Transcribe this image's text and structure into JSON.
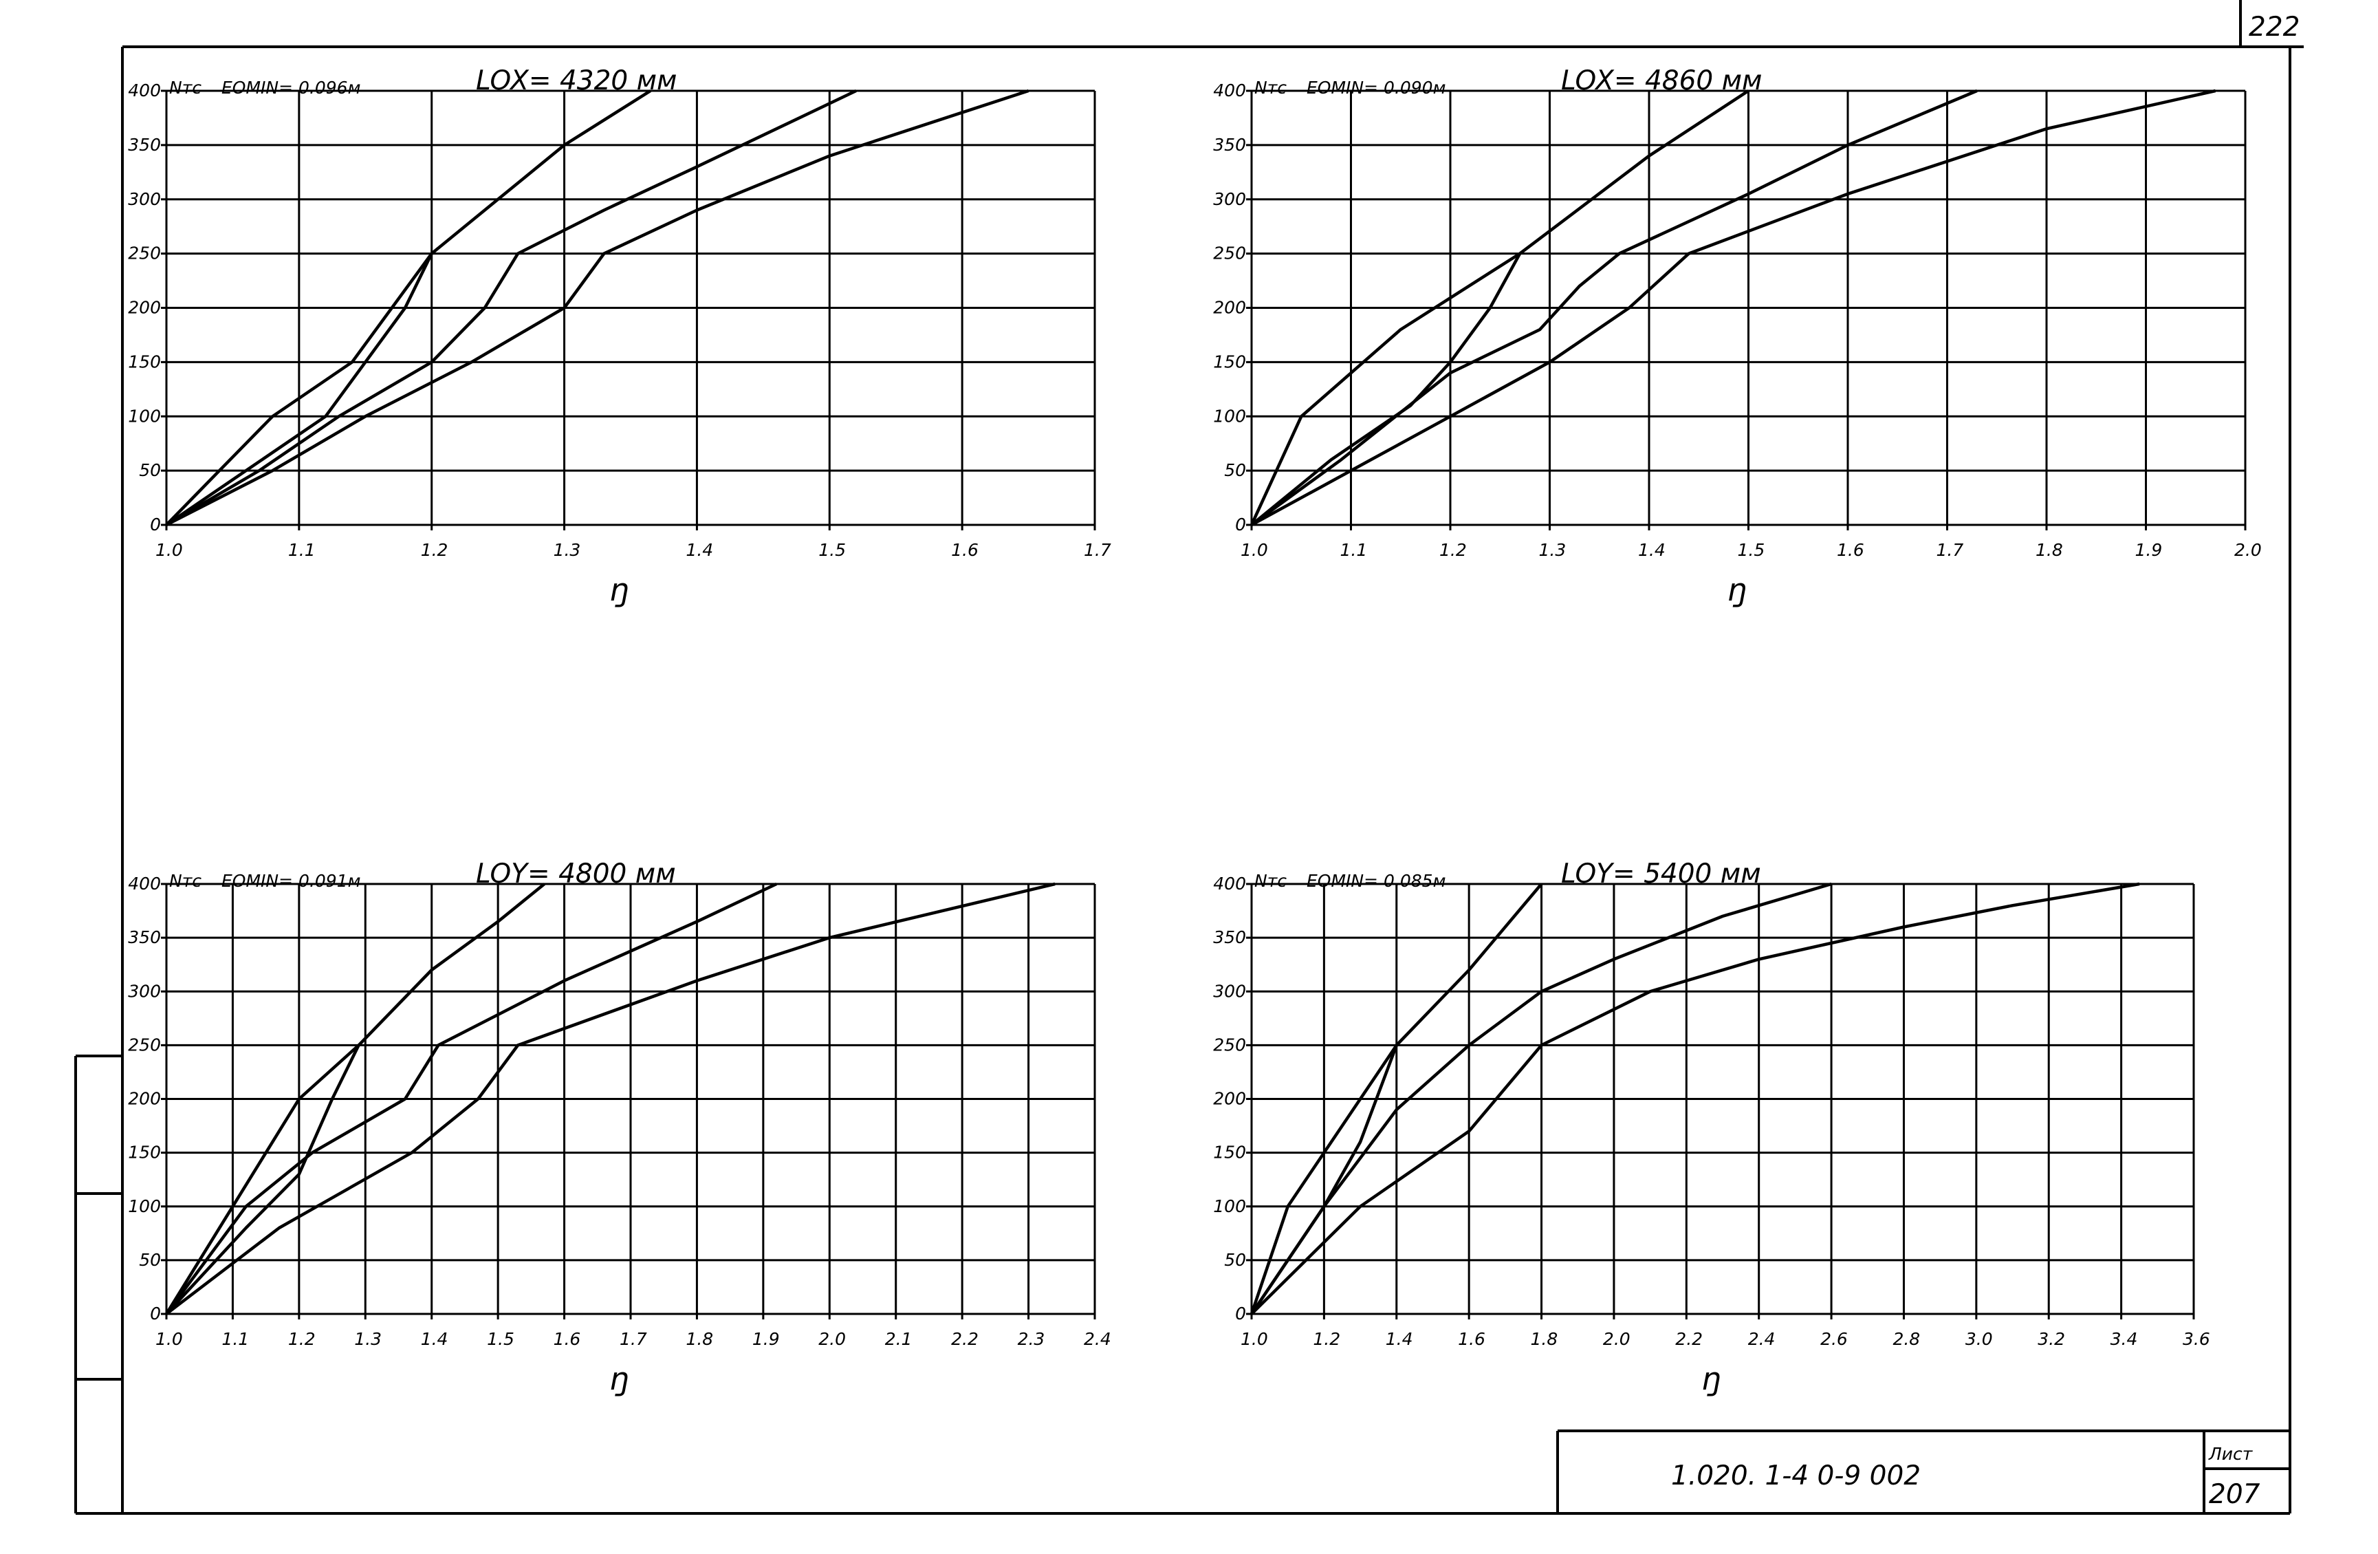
{
  "page_number": "222",
  "title_block": {
    "code": "1.020. 1-4  0-9  002",
    "sheet_label": "Лист",
    "sheet_number": "207"
  },
  "chart_data": [
    {
      "type": "line",
      "ylabel": "Nтс",
      "xlabel": "ŋ",
      "eomin": "EOMIN= 0.096м",
      "length": "LOX= 4320 мм",
      "xlim": [
        1.0,
        1.7
      ],
      "ylim": [
        0,
        400
      ],
      "x_ticks": [
        1.0,
        1.1,
        1.2,
        1.3,
        1.4,
        1.5,
        1.6,
        1.7
      ],
      "x_tick_labels": [
        "1.0",
        "1.1",
        "1.2",
        "1.3",
        "1.4",
        "1.5",
        "1.6",
        "1.7"
      ],
      "y_ticks": [
        0,
        50,
        100,
        150,
        200,
        250,
        300,
        350,
        400
      ],
      "y_tick_labels": [
        "0",
        "50",
        "100",
        "150",
        "200",
        "250",
        "300",
        "350",
        "400"
      ],
      "series": [
        {
          "points": [
            [
              1.0,
              0
            ],
            [
              1.04,
              50
            ],
            [
              1.08,
              100
            ],
            [
              1.14,
              150
            ],
            [
              1.2,
              250
            ],
            [
              1.25,
              300
            ],
            [
              1.3,
              350
            ],
            [
              1.365,
              400
            ]
          ]
        },
        {
          "points": [
            [
              1.0,
              0
            ],
            [
              1.06,
              50
            ],
            [
              1.12,
              100
            ],
            [
              1.15,
              150
            ],
            [
              1.18,
              200
            ],
            [
              1.2,
              250
            ]
          ]
        },
        {
          "points": [
            [
              1.0,
              0
            ],
            [
              1.07,
              50
            ],
            [
              1.13,
              100
            ],
            [
              1.2,
              150
            ],
            [
              1.24,
              200
            ],
            [
              1.265,
              250
            ],
            [
              1.33,
              290
            ],
            [
              1.4,
              330
            ],
            [
              1.52,
              400
            ]
          ]
        },
        {
          "points": [
            [
              1.0,
              0
            ],
            [
              1.08,
              50
            ],
            [
              1.15,
              100
            ],
            [
              1.23,
              150
            ],
            [
              1.3,
              200
            ],
            [
              1.33,
              250
            ],
            [
              1.4,
              290
            ],
            [
              1.5,
              340
            ],
            [
              1.65,
              400
            ]
          ]
        }
      ]
    },
    {
      "type": "line",
      "ylabel": "Nтс",
      "xlabel": "ŋ",
      "eomin": "EOMIN= 0.090м",
      "length": "LOX= 4860 мм",
      "xlim": [
        1.0,
        2.0
      ],
      "ylim": [
        0,
        400
      ],
      "x_ticks": [
        1.0,
        1.1,
        1.2,
        1.3,
        1.4,
        1.5,
        1.6,
        1.7,
        1.8,
        1.9,
        2.0
      ],
      "x_tick_labels": [
        "1.0",
        "1.1",
        "1.2",
        "1.3",
        "1.4",
        "1.5",
        "1.6",
        "1.7",
        "1.8",
        "1.9",
        "2.0"
      ],
      "y_ticks": [
        0,
        50,
        100,
        150,
        200,
        250,
        300,
        350,
        400
      ],
      "y_tick_labels": [
        "0",
        "50",
        "100",
        "150",
        "200",
        "250",
        "300",
        "350",
        "400"
      ],
      "series": [
        {
          "points": [
            [
              1.0,
              0
            ],
            [
              1.05,
              100
            ],
            [
              1.15,
              180
            ],
            [
              1.27,
              250
            ],
            [
              1.4,
              340
            ],
            [
              1.5,
              400
            ]
          ]
        },
        {
          "points": [
            [
              1.0,
              0
            ],
            [
              1.08,
              60
            ],
            [
              1.16,
              110
            ],
            [
              1.2,
              150
            ],
            [
              1.24,
              200
            ],
            [
              1.27,
              250
            ]
          ]
        },
        {
          "points": [
            [
              1.0,
              0
            ],
            [
              1.09,
              60
            ],
            [
              1.2,
              140
            ],
            [
              1.29,
              180
            ],
            [
              1.33,
              220
            ],
            [
              1.37,
              250
            ],
            [
              1.5,
              305
            ],
            [
              1.6,
              350
            ],
            [
              1.73,
              400
            ]
          ]
        },
        {
          "points": [
            [
              1.0,
              0
            ],
            [
              1.12,
              60
            ],
            [
              1.2,
              100
            ],
            [
              1.3,
              150
            ],
            [
              1.38,
              200
            ],
            [
              1.44,
              250
            ],
            [
              1.6,
              305
            ],
            [
              1.8,
              365
            ],
            [
              1.97,
              400
            ]
          ]
        }
      ]
    },
    {
      "type": "line",
      "ylabel": "Nтс",
      "xlabel": "ŋ",
      "eomin": "EOMIN= 0.091м",
      "length": "LOY= 4800 мм",
      "xlim": [
        1.0,
        2.4
      ],
      "ylim": [
        0,
        400
      ],
      "x_ticks": [
        1.0,
        1.1,
        1.2,
        1.3,
        1.4,
        1.5,
        1.6,
        1.7,
        1.8,
        1.9,
        2.0,
        2.1,
        2.2,
        2.3,
        2.4
      ],
      "x_tick_labels": [
        "1.0",
        "1.1",
        "1.2",
        "1.3",
        "1.4",
        "1.5",
        "1.6",
        "1.7",
        "1.8",
        "1.9",
        "2.0",
        "2.1",
        "2.2",
        "2.3",
        "2.4"
      ],
      "y_ticks": [
        0,
        50,
        100,
        150,
        200,
        250,
        300,
        350,
        400
      ],
      "y_tick_labels": [
        "0",
        "50",
        "100",
        "150",
        "200",
        "250",
        "300",
        "350",
        "400"
      ],
      "series": [
        {
          "points": [
            [
              1.0,
              0
            ],
            [
              1.1,
              100
            ],
            [
              1.2,
              200
            ],
            [
              1.29,
              250
            ],
            [
              1.4,
              320
            ],
            [
              1.5,
              365
            ],
            [
              1.57,
              400
            ]
          ]
        },
        {
          "points": [
            [
              1.0,
              0
            ],
            [
              1.12,
              80
            ],
            [
              1.2,
              130
            ],
            [
              1.25,
              200
            ],
            [
              1.29,
              250
            ]
          ]
        },
        {
          "points": [
            [
              1.0,
              0
            ],
            [
              1.12,
              100
            ],
            [
              1.22,
              150
            ],
            [
              1.36,
              200
            ],
            [
              1.41,
              250
            ],
            [
              1.6,
              310
            ],
            [
              1.8,
              365
            ],
            [
              1.92,
              400
            ]
          ]
        },
        {
          "points": [
            [
              1.0,
              0
            ],
            [
              1.17,
              80
            ],
            [
              1.37,
              150
            ],
            [
              1.47,
              200
            ],
            [
              1.53,
              250
            ],
            [
              1.8,
              310
            ],
            [
              2.0,
              350
            ],
            [
              2.34,
              400
            ]
          ]
        }
      ]
    },
    {
      "type": "line",
      "ylabel": "Nтс",
      "xlabel": "ŋ",
      "eomin": "EOMIN= 0.085м",
      "length": "LOY= 5400 мм",
      "xlim": [
        1.0,
        3.6
      ],
      "ylim": [
        0,
        400
      ],
      "x_ticks": [
        1.0,
        1.2,
        1.4,
        1.6,
        1.8,
        2.0,
        2.2,
        2.4,
        2.6,
        2.8,
        3.0,
        3.2,
        3.4,
        3.6
      ],
      "x_tick_labels": [
        "1.0",
        "1.2",
        "1.4",
        "1.6",
        "1.8",
        "2.0",
        "2.2",
        "2.4",
        "2.6",
        "2.8",
        "3.0",
        "3.2",
        "3.4",
        "3.6"
      ],
      "y_ticks": [
        0,
        50,
        100,
        150,
        200,
        250,
        300,
        350,
        400
      ],
      "y_tick_labels": [
        "0",
        "50",
        "100",
        "150",
        "200",
        "250",
        "300",
        "350",
        "400"
      ],
      "series": [
        {
          "points": [
            [
              1.0,
              0
            ],
            [
              1.1,
              100
            ],
            [
              1.2,
              150
            ],
            [
              1.3,
              200
            ],
            [
              1.4,
              250
            ],
            [
              1.6,
              320
            ],
            [
              1.8,
              400
            ]
          ]
        },
        {
          "points": [
            [
              1.0,
              0
            ],
            [
              1.2,
              100
            ],
            [
              1.3,
              160
            ],
            [
              1.4,
              250
            ]
          ]
        },
        {
          "points": [
            [
              1.0,
              0
            ],
            [
              1.2,
              100
            ],
            [
              1.4,
              190
            ],
            [
              1.6,
              250
            ],
            [
              1.8,
              300
            ],
            [
              2.0,
              330
            ],
            [
              2.3,
              370
            ],
            [
              2.6,
              400
            ]
          ]
        },
        {
          "points": [
            [
              1.0,
              0
            ],
            [
              1.3,
              100
            ],
            [
              1.6,
              170
            ],
            [
              1.8,
              250
            ],
            [
              2.1,
              300
            ],
            [
              2.4,
              330
            ],
            [
              2.8,
              360
            ],
            [
              3.1,
              380
            ],
            [
              3.45,
              400
            ]
          ]
        }
      ]
    }
  ]
}
